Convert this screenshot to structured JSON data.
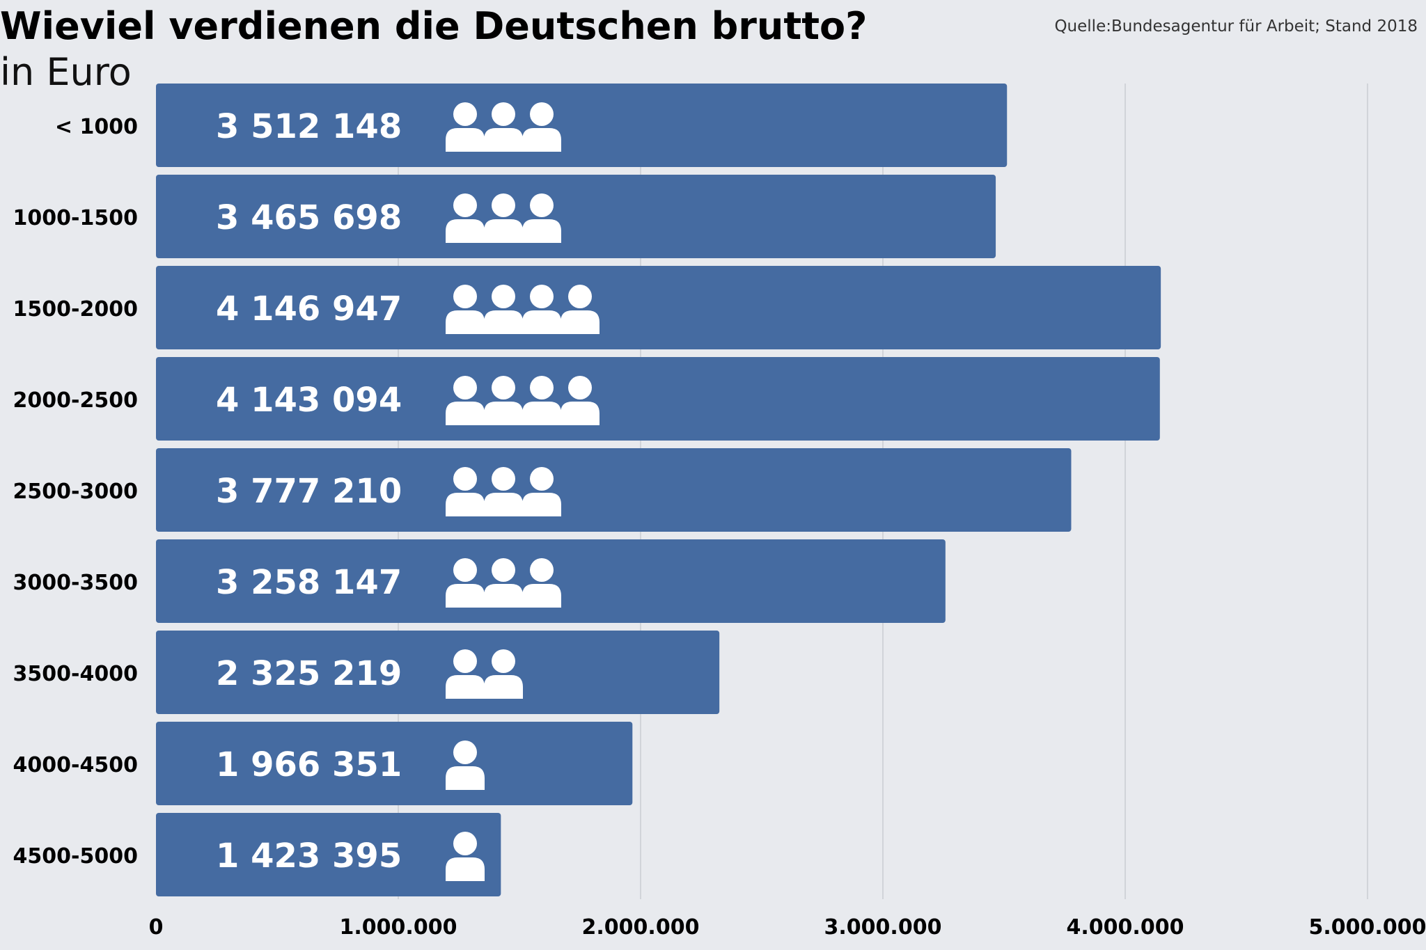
{
  "chart_data": {
    "type": "bar",
    "orientation": "horizontal",
    "title": "Wieviel verdienen die Deutschen brutto?",
    "subtitle": "in Euro",
    "source": "Quelle:Bundesagentur für Arbeit; Stand 2018",
    "categories": [
      "< 1000",
      "1000-1500",
      "1500-2000",
      "2000-2500",
      "2500-3000",
      "3000-3500",
      "3500-4000",
      "4000-4500",
      "4500-5000"
    ],
    "values": [
      3512148,
      3465698,
      4146947,
      4143094,
      3777210,
      3258147,
      2325219,
      1966351,
      1423395
    ],
    "data_labels": [
      "3 512 148",
      "3 465 698",
      "4 146 947",
      "4 143 094",
      "3 777 210",
      "3 258 147",
      "2 325 219",
      "1 966 351",
      "1 423 395"
    ],
    "person_icon_counts": [
      3,
      3,
      4,
      4,
      3,
      3,
      2,
      1,
      1
    ],
    "xlim": [
      0,
      5000000
    ],
    "xticks": [
      0,
      1000000,
      2000000,
      3000000,
      4000000,
      5000000
    ],
    "xtick_labels": [
      "0",
      "1.000.000",
      "2.000.000",
      "3.000.000",
      "4.000.000",
      "5.000.000"
    ],
    "grid": true,
    "colors": {
      "bar": "#456ba1",
      "background": "#e8eaee",
      "grid": "#c9ccd2",
      "label_text": "#ffffff",
      "icon": "#ffffff"
    }
  }
}
